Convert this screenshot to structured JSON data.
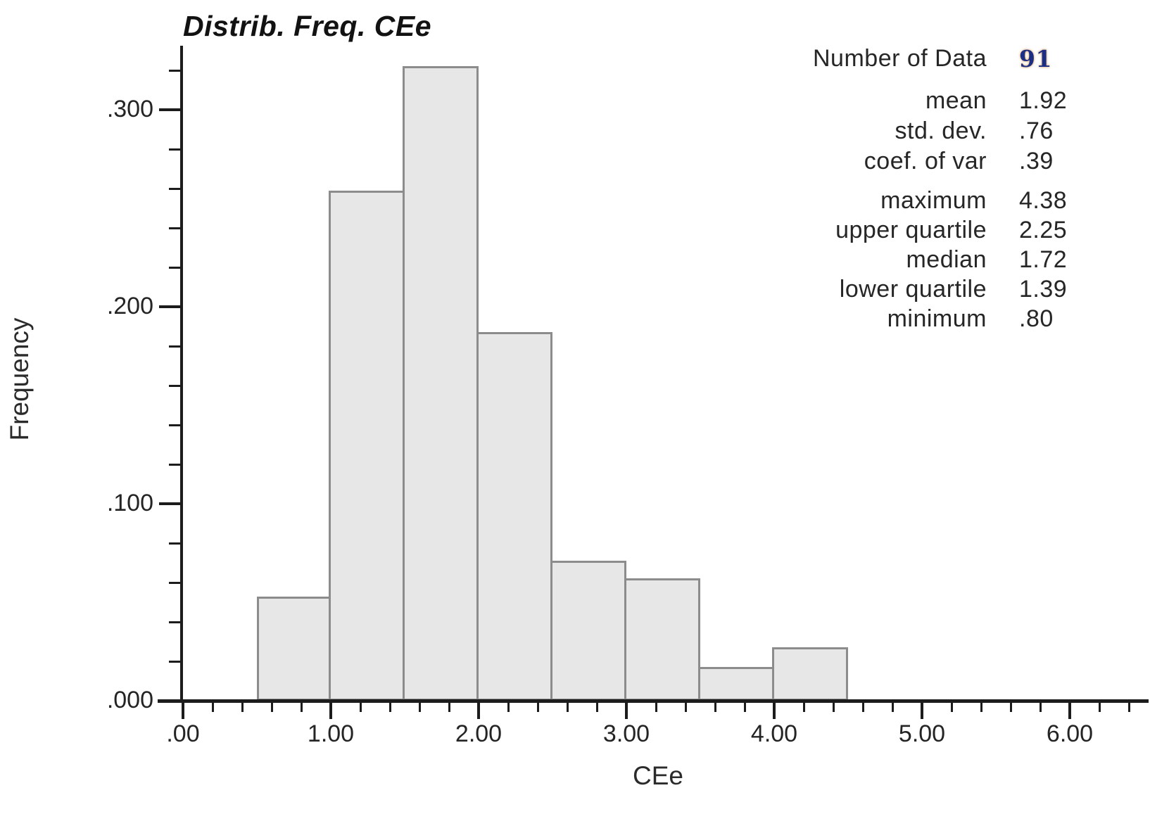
{
  "title": "Distrib. Freq. CEe",
  "y_axis_title": "Frequency",
  "x_axis_title": "CEe",
  "stats_panel": {
    "number_of_data": {
      "label": "Number of Data",
      "value": "91"
    },
    "moments": [
      {
        "label": "mean",
        "value": "1.92"
      },
      {
        "label": "std. dev.",
        "value": ".76"
      },
      {
        "label": "coef. of var",
        "value": ".39"
      }
    ],
    "order_stats": [
      {
        "label": "maximum",
        "value": "4.38"
      },
      {
        "label": "upper quartile",
        "value": "2.25"
      },
      {
        "label": "median",
        "value": "1.72"
      },
      {
        "label": "lower quartile",
        "value": "1.39"
      },
      {
        "label": "minimum",
        "value": ".80"
      }
    ]
  },
  "colors": {
    "bar_fill": "#e7e7e7",
    "bar_border": "#8c8c8c",
    "axis": "#1c1c1c",
    "text": "#262626",
    "number_of_data_value": "#1d2f85"
  },
  "chart_data": {
    "type": "bar",
    "subtype": "histogram",
    "title": "Distrib. Freq. CEe",
    "xlabel": "CEe",
    "ylabel": "Frequency",
    "bin_edges": [
      0.5,
      1.0,
      1.5,
      2.0,
      2.5,
      3.0,
      3.5,
      4.0,
      4.5
    ],
    "frequencies": [
      0.053,
      0.259,
      0.322,
      0.187,
      0.071,
      0.062,
      0.017,
      0.027
    ],
    "xlim": [
      0,
      6.52
    ],
    "ylim": [
      0,
      0.333
    ],
    "x_major_ticks": [
      0,
      1,
      2,
      3,
      4,
      5,
      6
    ],
    "x_tick_labels": [
      ".00",
      "1.00",
      "2.00",
      "3.00",
      "4.00",
      "5.00",
      "6.00"
    ],
    "x_minor_tick_step": 0.2,
    "x_minor_tick_max": 6.4,
    "y_major_ticks": [
      0,
      0.1,
      0.2,
      0.3
    ],
    "y_tick_labels": [
      ".000",
      ".100",
      ".200",
      ".300"
    ],
    "y_minor_tick_step": 0.02,
    "y_minor_tick_max": 0.32,
    "grid": false,
    "legend": false,
    "stats": {
      "number_of_data": 91,
      "mean": 1.92,
      "std_dev": 0.76,
      "coef_of_var": 0.39,
      "maximum": 4.38,
      "upper_quartile": 2.25,
      "median": 1.72,
      "lower_quartile": 1.39,
      "minimum": 0.8
    }
  }
}
